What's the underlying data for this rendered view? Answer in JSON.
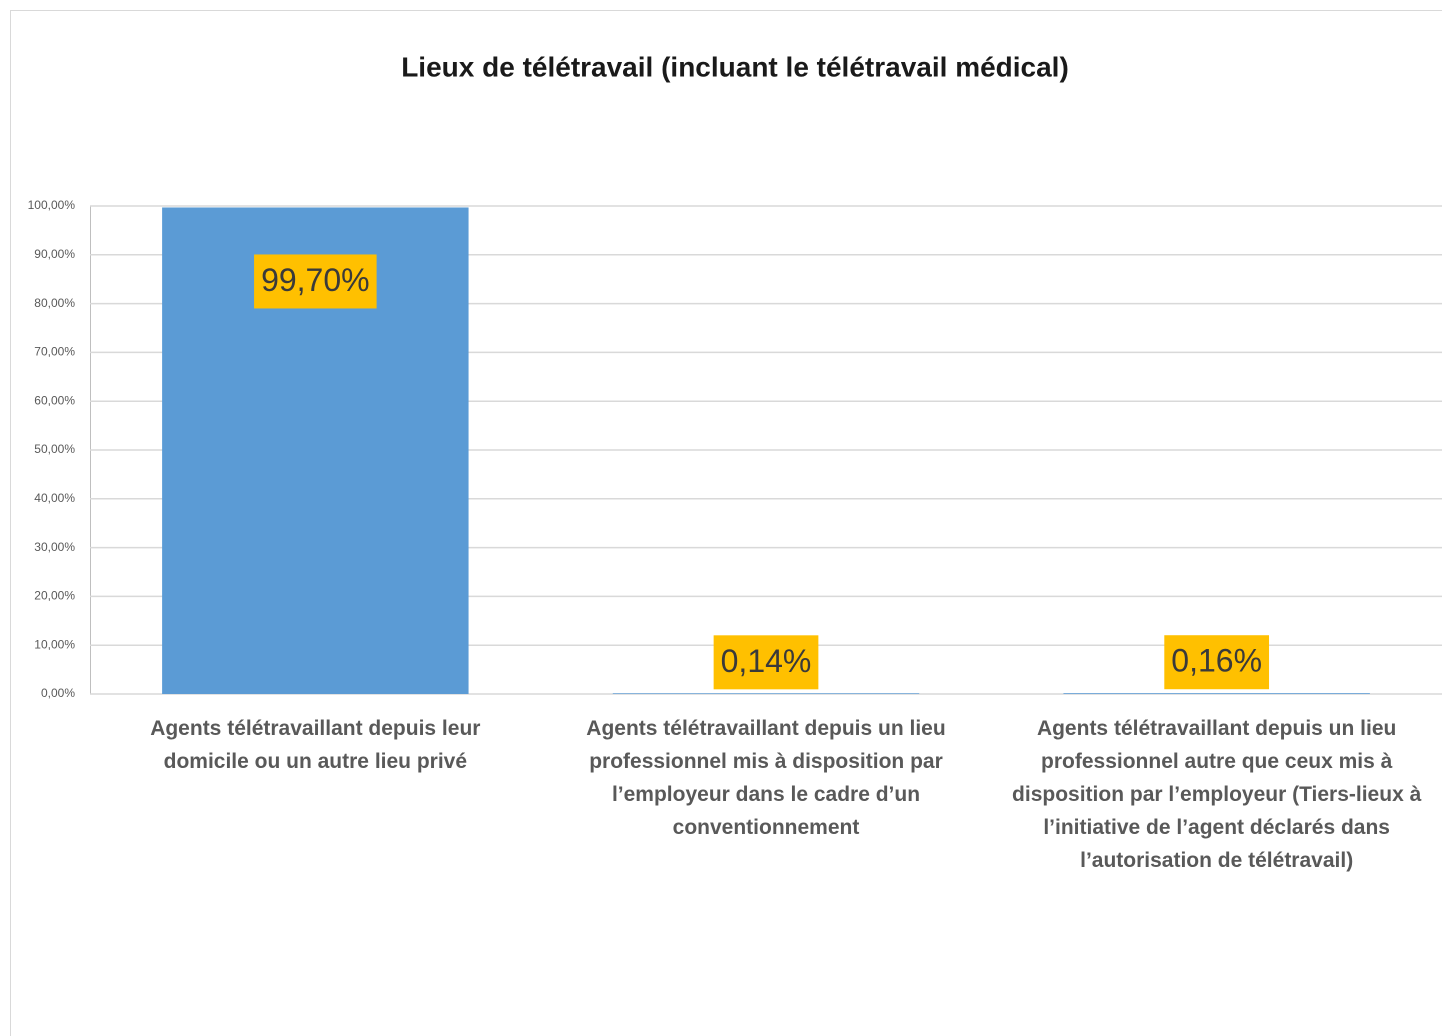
{
  "chart_data": {
    "type": "bar",
    "title": "Lieux de télétravail (incluant le télétravail médical)",
    "categories": [
      "Agents télétravaillant depuis leur domicile ou un autre lieu privé",
      "Agents télétravaillant depuis un lieu professionnel mis à disposition par l’employeur dans le cadre d’un conventionnement",
      "Agents télétravaillant depuis un lieu professionnel autre que ceux mis à disposition par l’employeur (Tiers-lieux à l’initiative de l’agent déclarés dans l’autorisation de télétravail)"
    ],
    "values": [
      99.7,
      0.14,
      0.16
    ],
    "value_labels": [
      "99,70%",
      "0,14%",
      "0,16%"
    ],
    "color": "#5b9bd5",
    "label_color": "#ffc000",
    "ylim": [
      0,
      100
    ],
    "yticks": [
      {
        "value": 0,
        "label": "0,00%"
      },
      {
        "value": 10,
        "label": "10,00%"
      },
      {
        "value": 20,
        "label": "20,00%"
      },
      {
        "value": 30,
        "label": "30,00%"
      },
      {
        "value": 40,
        "label": "40,00%"
      },
      {
        "value": 50,
        "label": "50,00%"
      },
      {
        "value": 60,
        "label": "60,00%"
      },
      {
        "value": 70,
        "label": "70,00%"
      },
      {
        "value": 80,
        "label": "80,00%"
      },
      {
        "value": 90,
        "label": "90,00%"
      },
      {
        "value": 100,
        "label": "100,00%"
      }
    ],
    "grid": true
  }
}
